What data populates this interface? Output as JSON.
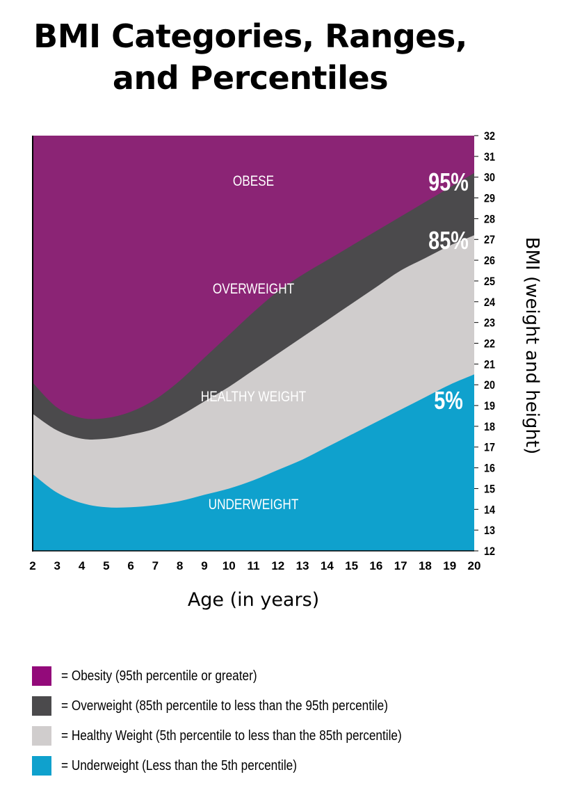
{
  "title": {
    "line1": "BMI Categories, Ranges,",
    "line2": "and Percentiles"
  },
  "colors": {
    "obese": "#8B2475",
    "overweight": "#4B4A4C",
    "healthy": "#D0CDCD",
    "underweight": "#0FA1CD",
    "legend_obese": "#930A7A",
    "legend_overweight": "#4B4A4C",
    "legend_healthy": "#D0CDCD",
    "legend_underweight": "#0FA1CD"
  },
  "chart_data": {
    "type": "area",
    "xlabel": "Age (in years)",
    "ylabel": "BMI (weight and height)",
    "xlim": [
      2,
      20
    ],
    "ylim": [
      12,
      32
    ],
    "x_ticks": [
      2,
      3,
      4,
      5,
      6,
      7,
      8,
      9,
      10,
      11,
      12,
      13,
      14,
      15,
      16,
      17,
      18,
      19,
      20
    ],
    "y_ticks": [
      12,
      13,
      14,
      15,
      16,
      17,
      18,
      19,
      20,
      21,
      22,
      23,
      24,
      25,
      26,
      27,
      28,
      29,
      30,
      31,
      32
    ],
    "x": [
      2,
      3,
      4,
      5,
      6,
      7,
      8,
      9,
      10,
      11,
      12,
      13,
      14,
      15,
      16,
      17,
      18,
      19,
      20
    ],
    "percentile_curves": [
      {
        "label": "5%",
        "values": [
          15.7,
          14.8,
          14.3,
          14.1,
          14.1,
          14.2,
          14.4,
          14.7,
          15.0,
          15.4,
          15.9,
          16.4,
          17.0,
          17.6,
          18.2,
          18.8,
          19.4,
          20.0,
          20.5
        ]
      },
      {
        "label": "85%",
        "values": [
          18.6,
          17.8,
          17.4,
          17.4,
          17.6,
          17.9,
          18.5,
          19.2,
          19.9,
          20.7,
          21.5,
          22.3,
          23.1,
          23.9,
          24.7,
          25.5,
          26.1,
          26.7,
          27.2
        ]
      },
      {
        "label": "95%",
        "values": [
          20.1,
          18.9,
          18.4,
          18.4,
          18.7,
          19.3,
          20.2,
          21.3,
          22.4,
          23.5,
          24.5,
          25.3,
          26.0,
          26.7,
          27.4,
          28.1,
          28.8,
          29.5,
          30.2
        ]
      }
    ],
    "regions": [
      {
        "name": "OBESE"
      },
      {
        "name": "OVERWEIGHT"
      },
      {
        "name": "HEALTHY WEIGHT"
      },
      {
        "name": "UNDERWEIGHT"
      }
    ],
    "legend": [
      {
        "text": "= Obesity (95th percentile or greater)"
      },
      {
        "text": "= Overweight (85th percentile to less than the 95th percentile)"
      },
      {
        "text": "= Healthy Weight (5th percentile to less than the 85th percentile)"
      },
      {
        "text": "= Underweight (Less than the 5th percentile)"
      }
    ]
  }
}
